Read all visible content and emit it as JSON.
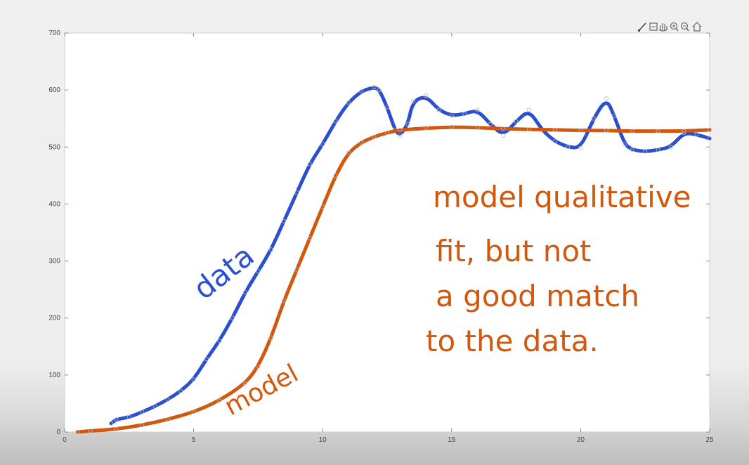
{
  "chart_data": {
    "type": "line",
    "xlim": [
      0,
      25
    ],
    "ylim": [
      0,
      700
    ],
    "x_ticks": [
      0,
      5,
      10,
      15,
      20,
      25
    ],
    "y_ticks": [
      0,
      100,
      200,
      300,
      400,
      500,
      600,
      700
    ],
    "grid": false,
    "series": [
      {
        "name": "data",
        "color": "#2a50cf",
        "x": [
          1.8,
          2,
          2.5,
          3,
          3.5,
          4,
          4.5,
          5,
          5.5,
          6,
          6.5,
          7,
          7.5,
          8,
          8.5,
          9,
          9.5,
          10,
          10.5,
          11,
          11.5,
          12,
          12.2,
          12.5,
          12.8,
          13,
          13.3,
          13.5,
          14,
          14.5,
          15,
          15.5,
          16,
          16.5,
          17,
          17.5,
          18,
          18.5,
          19,
          19.5,
          20,
          20.5,
          21,
          21.3,
          21.7,
          22,
          22.5,
          23,
          23.5,
          24,
          24.5,
          25
        ],
        "y": [
          15,
          22,
          26,
          35,
          45,
          57,
          72,
          92,
          128,
          160,
          200,
          245,
          282,
          320,
          370,
          420,
          470,
          505,
          545,
          578,
          598,
          605,
          600,
          570,
          530,
          520,
          540,
          580,
          590,
          565,
          555,
          558,
          565,
          540,
          520,
          545,
          565,
          530,
          510,
          500,
          498,
          550,
          585,
          555,
          505,
          495,
          492,
          495,
          500,
          525,
          522,
          515
        ]
      },
      {
        "name": "model",
        "color": "#d2580e",
        "x": [
          0.5,
          1,
          2,
          3,
          4,
          5,
          6,
          7,
          7.5,
          8,
          8.5,
          9,
          9.5,
          10,
          10.5,
          11,
          11.5,
          12,
          12.5,
          13,
          14,
          15,
          16,
          17,
          18,
          19,
          20,
          21,
          22,
          23,
          24,
          25
        ],
        "y": [
          0,
          2,
          5,
          12,
          22,
          35,
          55,
          85,
          115,
          165,
          230,
          285,
          340,
          395,
          450,
          490,
          508,
          518,
          525,
          530,
          533,
          535,
          534,
          532,
          531,
          530,
          529,
          529,
          528,
          528,
          528,
          530
        ]
      }
    ],
    "annotations": [
      "data",
      "model",
      "model qualitative",
      "fit, but not",
      "a good match",
      "to the data."
    ]
  },
  "toolbar": {
    "items": [
      "brush-icon",
      "export-icon",
      "pan-icon",
      "zoom-in-icon",
      "zoom-out-icon",
      "home-icon"
    ]
  }
}
